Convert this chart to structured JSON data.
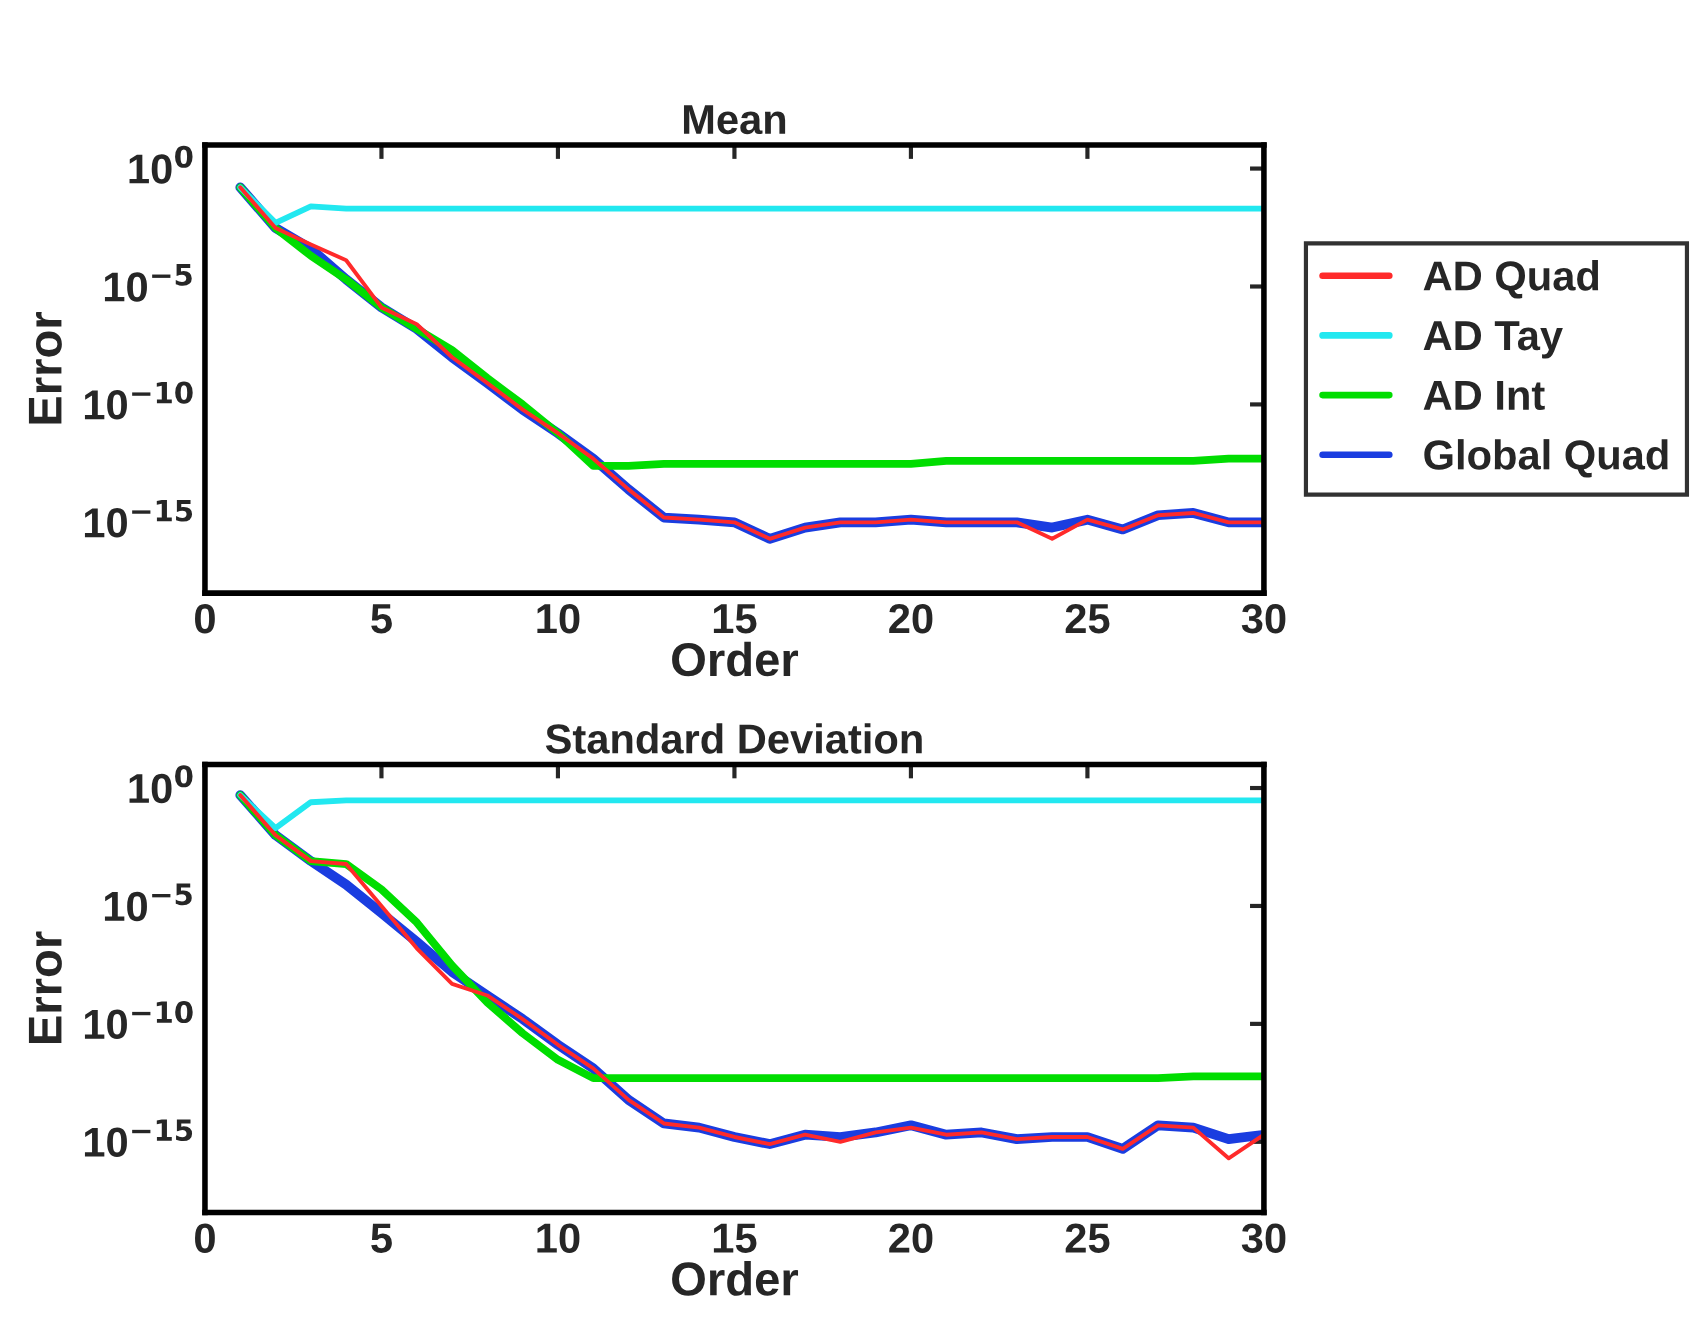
{
  "chart_data": [
    {
      "type": "line",
      "title": "Mean",
      "xlabel": "Order",
      "ylabel": "Error",
      "log": "y",
      "grid": false,
      "legend": "right",
      "line_style": "solid",
      "marker": "none",
      "x": [
        1,
        2,
        3,
        4,
        5,
        6,
        7,
        8,
        9,
        10,
        11,
        12,
        13,
        14,
        15,
        16,
        17,
        18,
        19,
        20,
        21,
        22,
        23,
        24,
        25,
        26,
        27,
        28,
        29,
        30
      ],
      "xlim": [
        0,
        30
      ],
      "xticks": [
        0,
        5,
        10,
        15,
        20,
        25,
        30
      ],
      "ylim": [
        1e-18,
        10
      ],
      "yticks": [
        {
          "value": 1,
          "label": "10$^{0}$"
        },
        {
          "value": 1e-05,
          "label": "10$^{−5}$"
        },
        {
          "value": 1e-10,
          "label": "10$^{−10}$"
        },
        {
          "value": 1e-15,
          "label": "10$^{−15}$"
        }
      ],
      "series": [
        {
          "name": "AD Quad",
          "color": "#ff2a2a",
          "values": [
            0.16,
            0.003,
            0.0006,
            0.00013,
            1.3e-06,
            2.5e-07,
            1e-08,
            8e-10,
            6e-11,
            6e-12,
            5e-13,
            2.5e-14,
            1.6e-15,
            1.3e-15,
            1e-15,
            2e-16,
            6e-16,
            1e-15,
            1e-15,
            1.3e-15,
            1e-15,
            1e-15,
            1e-15,
            2e-16,
            1.3e-15,
            5e-16,
            2e-15,
            2.5e-15,
            1e-15,
            1e-15
          ]
        },
        {
          "name": "AD Tay",
          "color": "#22e8f0",
          "values": [
            0.16,
            0.005,
            0.025,
            0.02,
            0.02,
            0.02,
            0.02,
            0.02,
            0.02,
            0.02,
            0.02,
            0.02,
            0.02,
            0.02,
            0.02,
            0.02,
            0.02,
            0.02,
            0.02,
            0.02,
            0.02,
            0.02,
            0.02,
            0.02,
            0.02,
            0.02,
            0.02,
            0.02,
            0.02,
            0.02
          ]
        },
        {
          "name": "AD Int",
          "color": "#00dd00",
          "values": [
            0.16,
            0.003,
            0.0002,
            2e-05,
            1.3e-06,
            1.6e-07,
            2e-08,
            1.3e-09,
            1e-10,
            6e-12,
            2.5e-13,
            2.5e-13,
            3e-13,
            3e-13,
            3e-13,
            3e-13,
            3e-13,
            3e-13,
            3e-13,
            3e-13,
            4e-13,
            4e-13,
            4e-13,
            4e-13,
            4e-13,
            4e-13,
            4e-13,
            4e-13,
            5e-13,
            5e-13
          ]
        },
        {
          "name": "Global Quad",
          "color": "#1a3de0",
          "values": [
            0.16,
            0.003,
            0.0004,
            2e-05,
            1.3e-06,
            1.6e-07,
            1e-08,
            8e-10,
            6e-11,
            6e-12,
            5e-13,
            2.5e-14,
            1.6e-15,
            1.3e-15,
            1e-15,
            2e-16,
            6e-16,
            1e-15,
            1e-15,
            1.3e-15,
            1e-15,
            1e-15,
            1e-15,
            6e-16,
            1.3e-15,
            5e-16,
            2e-15,
            2.5e-15,
            1e-15,
            1e-15
          ]
        }
      ]
    },
    {
      "type": "line",
      "title": "Standard Deviation",
      "xlabel": "Order",
      "ylabel": "Error",
      "log": "y",
      "grid": false,
      "legend": false,
      "line_style": "solid",
      "marker": "none",
      "x": [
        1,
        2,
        3,
        4,
        5,
        6,
        7,
        8,
        9,
        10,
        11,
        12,
        13,
        14,
        15,
        16,
        17,
        18,
        19,
        20,
        21,
        22,
        23,
        24,
        25,
        26,
        27,
        28,
        29,
        30
      ],
      "xlim": [
        0,
        30
      ],
      "xticks": [
        0,
        5,
        10,
        15,
        20,
        25,
        30
      ],
      "ylim": [
        1e-18,
        10
      ],
      "yticks": [
        {
          "value": 1,
          "label": "10$^{0}$"
        },
        {
          "value": 1e-05,
          "label": "10$^{−5}$"
        },
        {
          "value": 1e-10,
          "label": "10$^{−10}$"
        },
        {
          "value": 1e-15,
          "label": "10$^{−15}$"
        }
      ],
      "series": [
        {
          "color": "#ff2a2a",
          "values": [
            0.5,
            0.01,
            0.0008,
            0.0006,
            1e-05,
            1.6e-07,
            5e-09,
            1.6e-09,
            1.6e-10,
            1.3e-11,
            1.3e-12,
            6e-14,
            6e-15,
            4e-15,
            1.6e-15,
            8e-16,
            2e-15,
            1e-15,
            2.5e-15,
            4e-15,
            2e-15,
            2.5e-15,
            1.3e-15,
            1.6e-15,
            1.6e-15,
            5e-16,
            5e-15,
            4e-15,
            2e-16,
            2e-15
          ]
        },
        {
          "color": "#22e8f0",
          "values": [
            0.5,
            0.02,
            0.25,
            0.3,
            0.3,
            0.3,
            0.3,
            0.3,
            0.3,
            0.3,
            0.3,
            0.3,
            0.3,
            0.3,
            0.3,
            0.3,
            0.3,
            0.3,
            0.3,
            0.3,
            0.3,
            0.3,
            0.3,
            0.3,
            0.3,
            0.3,
            0.3,
            0.3,
            0.3,
            0.3
          ]
        },
        {
          "color": "#00dd00",
          "values": [
            0.5,
            0.01,
            0.0008,
            0.0006,
            5e-05,
            2e-06,
            3e-08,
            8e-10,
            4e-11,
            3e-12,
            5e-13,
            5e-13,
            5e-13,
            5e-13,
            5e-13,
            5e-13,
            5e-13,
            5e-13,
            5e-13,
            5e-13,
            5e-13,
            5e-13,
            5e-13,
            5e-13,
            5e-13,
            5e-13,
            5e-13,
            6e-13,
            6e-13,
            6e-13
          ]
        },
        {
          "color": "#1a3de0",
          "values": [
            0.5,
            0.01,
            0.0008,
            8e-05,
            5e-06,
            3e-07,
            1.6e-08,
            1.6e-09,
            1.6e-10,
            1.3e-11,
            1.3e-12,
            6e-14,
            6e-15,
            4e-15,
            1.6e-15,
            8e-16,
            2e-15,
            1.6e-15,
            2.5e-15,
            5e-15,
            2e-15,
            2.5e-15,
            1.3e-15,
            1.6e-15,
            1.6e-15,
            5e-16,
            5e-15,
            4e-15,
            1.3e-15,
            2e-15
          ]
        }
      ]
    }
  ]
}
